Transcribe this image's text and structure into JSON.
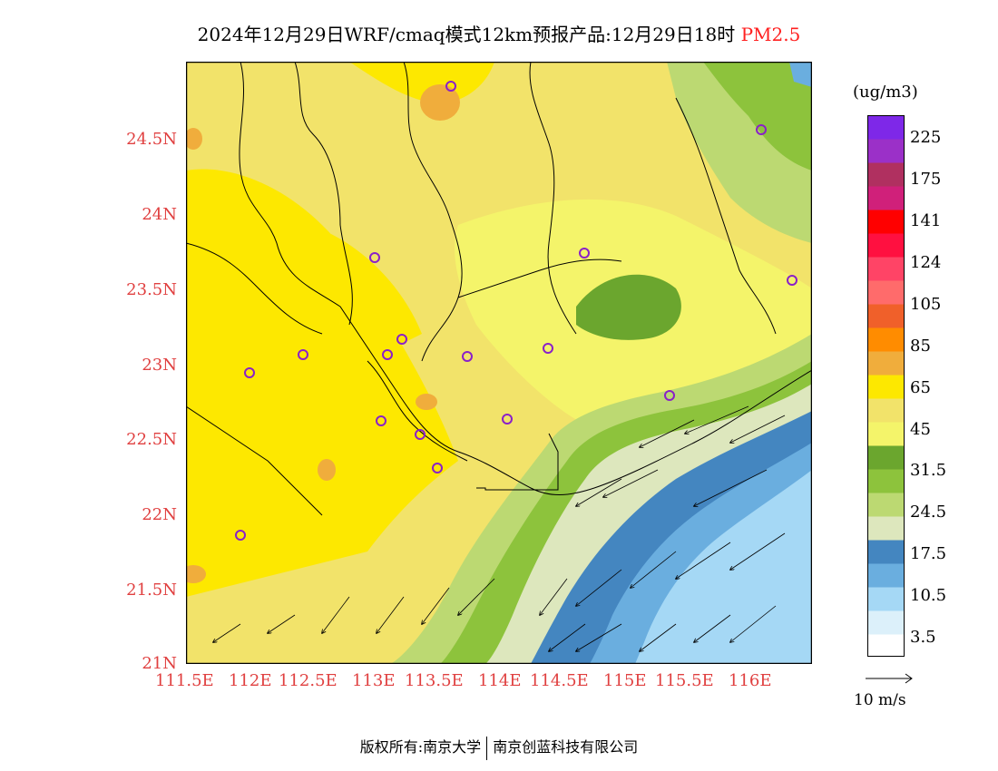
{
  "title": {
    "main": "2024年12月29日WRF/cmaq模式12km预报产品:12月29日18时",
    "pollutant": "PM2.5"
  },
  "map": {
    "lat_labels": [
      "24.5N",
      "24N",
      "23.5N",
      "23N",
      "22.5N",
      "22N",
      "21.5N",
      "21N"
    ],
    "lon_labels": [
      "111.5E",
      "112E",
      "112.5E",
      "113E",
      "113.5E",
      "114E",
      "114.5E",
      "115E",
      "115.5E",
      "116E"
    ],
    "colors": {
      "land_yellow": "#f2e36a",
      "bright_yellow": "#fde800",
      "pale_yellow": "#f4f46a",
      "orange": "#f0ad3c",
      "green_dark": "#6ba62e",
      "green_mid": "#8dc33c",
      "green_light": "#bcd972",
      "pale_green": "#dde7bd",
      "blue_dark": "#4486c0",
      "blue_mid": "#6aaedf",
      "blue_light": "#a5d8f5",
      "station_marker": "#8a20c8"
    }
  },
  "colorbar": {
    "unit": "(ug/m3)",
    "labels": [
      "225",
      "175",
      "141",
      "124",
      "105",
      "85",
      "65",
      "45",
      "31.5",
      "24.5",
      "17.5",
      "10.5",
      "3.5"
    ],
    "colors": [
      "#ffffff",
      "#dcf0fa",
      "#a5d8f5",
      "#6aaedf",
      "#4486c0",
      "#dde7bd",
      "#bcd972",
      "#8dc33c",
      "#6ba62e",
      "#f4f46a",
      "#f2e36a",
      "#fde800",
      "#f0ad3c",
      "#ff8c00",
      "#f0602a",
      "#ff6b6b",
      "#ff4466",
      "#ff1040",
      "#ff0000",
      "#d0207a",
      "#b03060",
      "#9b30c8",
      "#7e28e8"
    ]
  },
  "wind_legend": {
    "label": "10 m/s"
  },
  "footer": {
    "left": "版权所有:南京大学",
    "right": "南京创蓝科技有限公司"
  }
}
